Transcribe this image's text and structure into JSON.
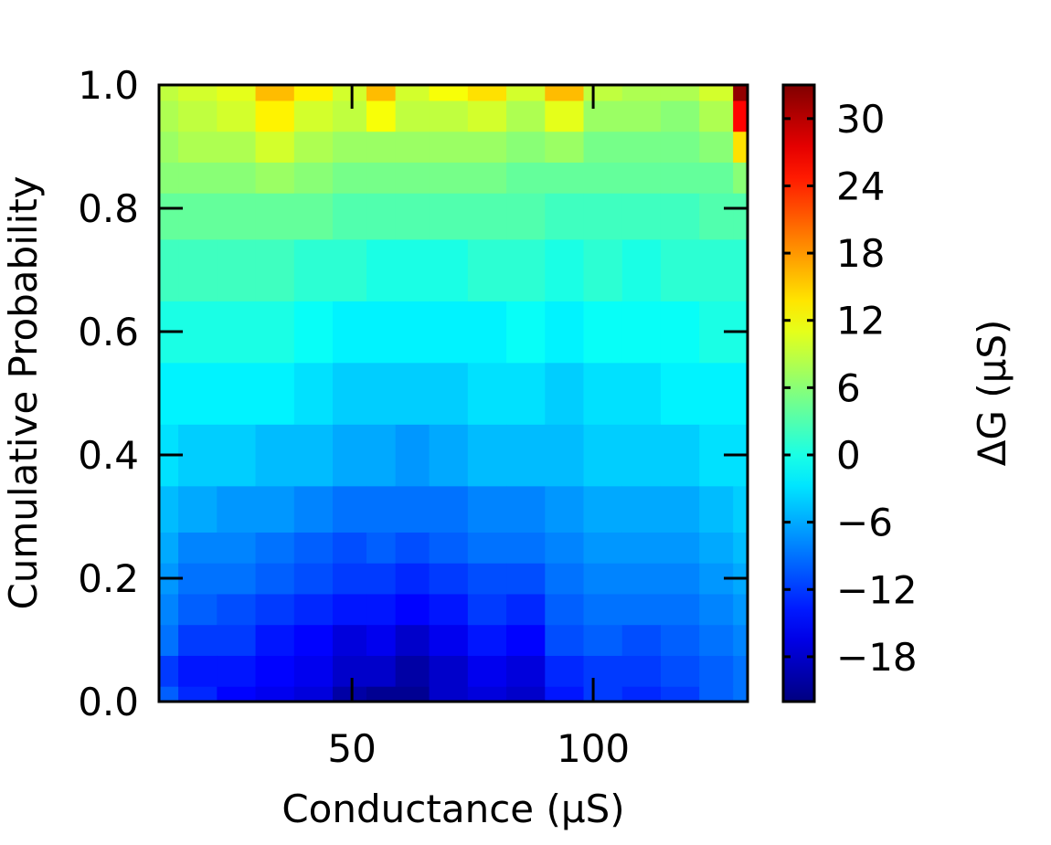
{
  "chart_data": {
    "type": "heatmap",
    "xlabel": "Conductance (μS)",
    "ylabel": "Cumulative Probability",
    "colorbar_label": "ΔG (μS)",
    "xlim": [
      10,
      132
    ],
    "ylim": [
      0.0,
      1.0
    ],
    "x_ticks": [
      50,
      100
    ],
    "x_tick_labels": [
      "50",
      "100"
    ],
    "y_ticks": [
      0.0,
      0.2,
      0.4,
      0.6,
      0.8,
      1.0
    ],
    "y_tick_labels": [
      "0.0",
      "0.2",
      "0.4",
      "0.6",
      "0.8",
      "1.0"
    ],
    "colorbar_range": [
      -22,
      33
    ],
    "colorbar_ticks": [
      -18,
      -12,
      -6,
      0,
      6,
      12,
      18,
      24,
      30
    ],
    "colorbar_tick_labels": [
      "−18",
      "−12",
      "−6",
      "0",
      "6",
      "12",
      "18",
      "24",
      "30"
    ],
    "colormap": "jet",
    "y_levels": [
      0.0,
      0.05,
      0.1,
      0.15,
      0.2,
      0.25,
      0.3,
      0.4,
      0.5,
      0.6,
      0.7,
      0.8,
      0.85,
      0.9,
      0.95,
      1.0
    ],
    "x_columns": [
      10,
      18,
      26,
      34,
      42,
      50,
      56,
      62,
      70,
      78,
      86,
      94,
      102,
      110,
      118,
      126,
      132
    ],
    "z_columns": [
      [
        -10,
        -12,
        -9,
        -8,
        -7,
        -6,
        -5,
        -3,
        -2,
        0,
        2,
        4,
        6,
        7,
        8,
        9
      ],
      [
        -13,
        -14,
        -12,
        -10,
        -9,
        -8,
        -6,
        -4,
        -2,
        0,
        2,
        4,
        6,
        8,
        9,
        10
      ],
      [
        -15,
        -14,
        -12,
        -11,
        -9,
        -8,
        -7,
        -4,
        -2,
        0,
        2,
        4,
        6,
        8,
        10,
        11
      ],
      [
        -16,
        -15,
        -14,
        -12,
        -10,
        -9,
        -7,
        -5,
        -2,
        0,
        2,
        4,
        7,
        10,
        13,
        16
      ],
      [
        -17,
        -16,
        -15,
        -13,
        -11,
        -10,
        -8,
        -5,
        -3,
        -1,
        1,
        4,
        6,
        8,
        10,
        13
      ],
      [
        -20,
        -18,
        -17,
        -14,
        -12,
        -11,
        -9,
        -6,
        -4,
        -2,
        1,
        3,
        5,
        7,
        9,
        10
      ],
      [
        -21,
        -18,
        -16,
        -14,
        -12,
        -10,
        -9,
        -6,
        -4,
        -2,
        0,
        3,
        5,
        7,
        12,
        16
      ],
      [
        -21,
        -20,
        -18,
        -15,
        -13,
        -11,
        -9,
        -7,
        -4,
        -2,
        0,
        3,
        5,
        7,
        9,
        10
      ],
      [
        -18,
        -18,
        -16,
        -14,
        -12,
        -10,
        -9,
        -6,
        -4,
        -2,
        0,
        3,
        5,
        7,
        9,
        12
      ],
      [
        -17,
        -16,
        -14,
        -12,
        -11,
        -9,
        -8,
        -5,
        -3,
        -2,
        1,
        3,
        5,
        7,
        10,
        14
      ],
      [
        -18,
        -17,
        -15,
        -13,
        -11,
        -9,
        -8,
        -5,
        -3,
        -1,
        1,
        3,
        4,
        6,
        8,
        10
      ],
      [
        -14,
        -13,
        -11,
        -10,
        -9,
        -8,
        -7,
        -5,
        -4,
        -2,
        0,
        2,
        4,
        7,
        11,
        16
      ],
      [
        -12,
        -12,
        -10,
        -9,
        -8,
        -7,
        -6,
        -4,
        -3,
        -1,
        1,
        2,
        4,
        5,
        7,
        9
      ],
      [
        -13,
        -12,
        -11,
        -9,
        -8,
        -7,
        -6,
        -4,
        -3,
        -1,
        0,
        2,
        4,
        5,
        7,
        8
      ],
      [
        -12,
        -11,
        -10,
        -9,
        -8,
        -7,
        -6,
        -4,
        -2,
        -1,
        1,
        2,
        4,
        5,
        6,
        8
      ],
      [
        -10,
        -10,
        -9,
        -8,
        -7,
        -6,
        -5,
        -3,
        -2,
        0,
        1,
        3,
        4,
        6,
        8,
        10
      ],
      [
        -9,
        -9,
        -8,
        -7,
        -6,
        -5,
        -4,
        -3,
        -2,
        0,
        1,
        3,
        6,
        14,
        26,
        32
      ]
    ]
  }
}
